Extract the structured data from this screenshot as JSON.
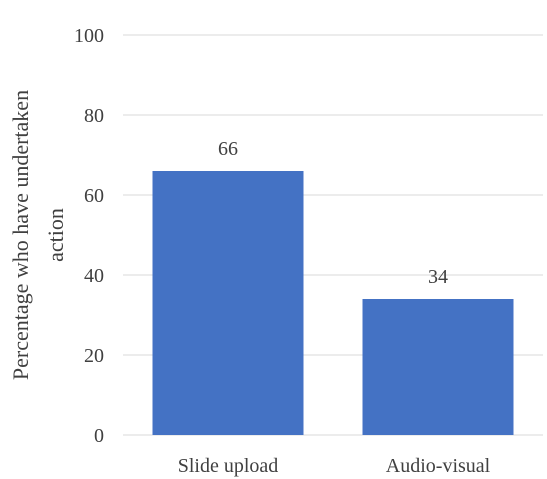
{
  "chart_data": {
    "type": "bar",
    "title": "",
    "xlabel": "",
    "ylabel_lines": [
      "Percentage who have undertaken",
      "action"
    ],
    "categories": [
      "Slide upload",
      "Audio-visual"
    ],
    "values": [
      66,
      34
    ],
    "data_labels": [
      "66",
      "34"
    ],
    "ylim": [
      0,
      100
    ],
    "yticks": [
      0,
      20,
      40,
      60,
      80,
      100
    ],
    "grid": true,
    "legend": "none",
    "bar_color": "#4472c4"
  }
}
